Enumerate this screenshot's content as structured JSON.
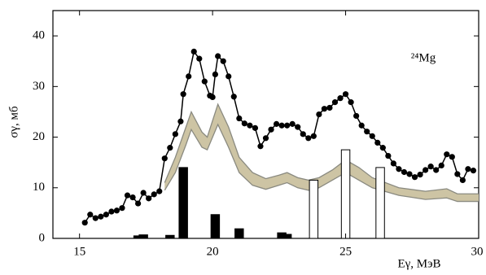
{
  "chart_data": {
    "type": "line",
    "x_label": "Eγ, МэВ",
    "y_label": "σγ, мб",
    "annotation": "²⁴Mg",
    "xlim": [
      14,
      30
    ],
    "ylim": [
      0,
      45
    ],
    "xticks": [
      15,
      20,
      25,
      30
    ],
    "yticks": [
      0,
      10,
      20,
      30,
      40
    ],
    "series": [
      {
        "color": "#000000",
        "x": [
          15.2,
          15.4,
          15.6,
          15.8,
          16.0,
          16.2,
          16.4,
          16.6,
          16.8,
          17.0,
          17.2,
          17.4,
          17.6,
          17.8,
          18.0,
          18.2,
          18.4,
          18.6,
          18.8,
          18.9,
          19.1,
          19.3,
          19.5,
          19.7,
          19.9,
          20.0,
          20.1,
          20.2,
          20.4,
          20.6,
          20.8,
          21.0,
          21.2,
          21.4,
          21.6,
          21.8,
          22.0,
          22.2,
          22.4,
          22.6,
          22.8,
          23.0,
          23.2,
          23.4,
          23.6,
          23.8,
          24.0,
          24.2,
          24.4,
          24.6,
          24.8,
          25.0,
          25.2,
          25.4,
          25.6,
          25.8,
          26.0,
          26.2,
          26.4,
          26.6,
          26.8,
          27.0,
          27.2,
          27.4,
          27.6,
          27.8,
          28.0,
          28.2,
          28.4,
          28.6,
          28.8,
          29.0,
          29.2,
          29.4,
          29.6,
          29.8
        ],
        "values": [
          3.1,
          4.7,
          4.0,
          4.3,
          4.7,
          5.3,
          5.5,
          6.0,
          8.5,
          8.1,
          6.9,
          9.0,
          7.9,
          8.7,
          9.3,
          15.8,
          17.9,
          20.6,
          23.1,
          28.5,
          32,
          36.9,
          35.5,
          31,
          28.2,
          27.9,
          32.4,
          36,
          35,
          32,
          28,
          23.7,
          22.7,
          22.3,
          21.8,
          18.2,
          19.8,
          21.5,
          22.6,
          22.3,
          22.3,
          22.6,
          22,
          20.6,
          19.8,
          20.2,
          24.5,
          25.6,
          25.8,
          26.9,
          27.7,
          28.5,
          26.9,
          24.2,
          22.3,
          21.1,
          20.2,
          18.9,
          17.9,
          16.3,
          14.8,
          13.7,
          13.1,
          12.7,
          12.1,
          12.6,
          13.5,
          14.2,
          13.5,
          14.4,
          16.6,
          16.1,
          12.7,
          11.5,
          13.7,
          13.4
        ]
      }
    ],
    "band": {
      "color": "#cdc4a4",
      "edge": "#8a8a80",
      "x": [
        18.2,
        18.6,
        19.0,
        19.2,
        19.6,
        19.8,
        20.2,
        20.6,
        21.0,
        21.5,
        22.0,
        22.5,
        22.8,
        23.2,
        23.6,
        24.0,
        24.5,
        25.0,
        25.5,
        26.0,
        27.0,
        28.0,
        28.8,
        29.2,
        30
      ],
      "upper": [
        11,
        16,
        22,
        25,
        21,
        20,
        26.5,
        22,
        16,
        13,
        11.8,
        12.5,
        13,
        12,
        11.5,
        12,
        13.5,
        15.5,
        14,
        12,
        10,
        9.3,
        9.8,
        8.8,
        8.8
      ],
      "lower": [
        9.5,
        13,
        18.5,
        21.5,
        18,
        17.5,
        22.5,
        18,
        13,
        10.5,
        9.7,
        10.5,
        11,
        10,
        9.5,
        10,
        11.5,
        13,
        11.5,
        10,
        8.5,
        7.7,
        8,
        7.3,
        7.3
      ]
    },
    "bars": [
      {
        "color": "#000000",
        "x": [
          17.2,
          17.4,
          18.4,
          18.9,
          20.1,
          21.0,
          22.6,
          22.8
        ],
        "values": [
          0.5,
          0.7,
          0.6,
          14,
          4.7,
          1.9,
          1.1,
          0.8
        ]
      },
      {
        "color": "#ffffff",
        "x": [
          23.8,
          25.0,
          26.3
        ],
        "values": [
          11.5,
          17.5,
          14
        ]
      }
    ]
  }
}
